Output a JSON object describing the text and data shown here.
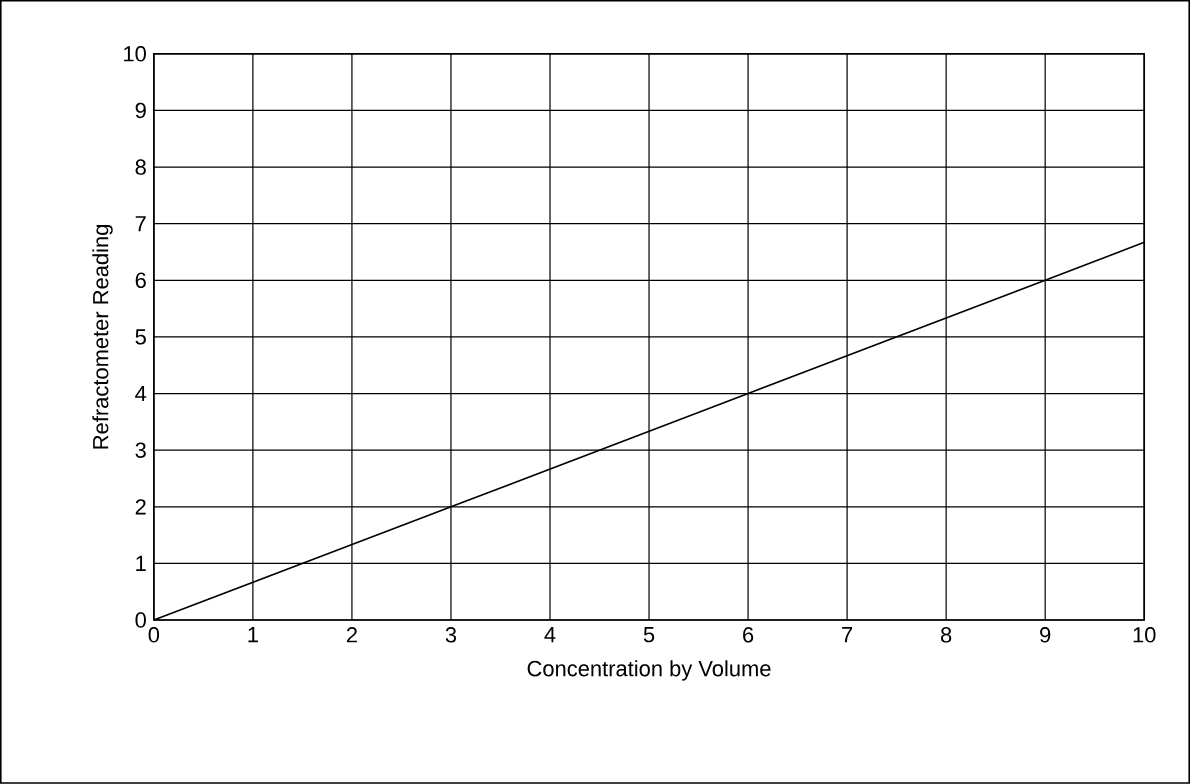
{
  "chart_data": {
    "type": "line",
    "xlabel": "Concentration by Volume",
    "ylabel": "Refractometer Reading",
    "x": [
      0,
      3,
      6,
      9,
      10
    ],
    "series": [
      {
        "color": "#000000",
        "values": [
          0,
          2,
          4,
          6,
          6.67
        ]
      }
    ],
    "xlim": [
      0,
      10
    ],
    "ylim": [
      0,
      10
    ],
    "xticks": [
      0,
      1,
      2,
      3,
      4,
      5,
      6,
      7,
      8,
      9,
      10
    ],
    "yticks": [
      0,
      1,
      2,
      3,
      4,
      5,
      6,
      7,
      8,
      9,
      10
    ],
    "grid": true,
    "marker": "none",
    "line_style": "solid"
  }
}
